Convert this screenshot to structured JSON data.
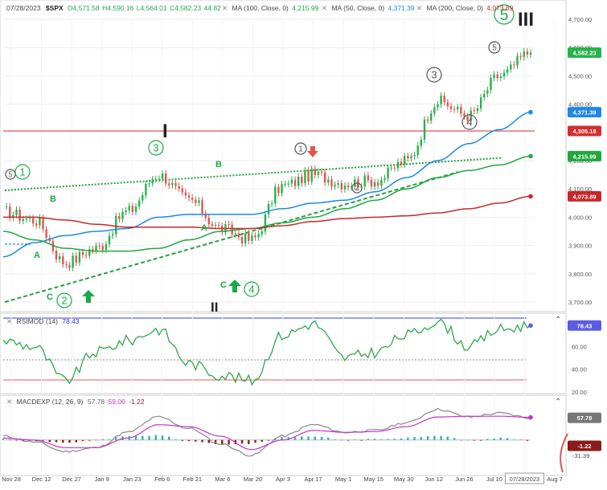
{
  "header": {
    "date": "07/28/2023",
    "symbol": "$SPX",
    "open": "O4,571.58",
    "high": "H4,590.16",
    "low": "L4,564.01",
    "close": "C4,582.23",
    "change": "44.82",
    "ma100": "MA (100, Close, 0)",
    "ma100_val": "4,215.99",
    "ma50": "MA (50, Close, 0)",
    "ma50_val": "4,371.39",
    "ma200": "MA (200, Close, 0)",
    "ma200_val": "4,073.89"
  },
  "panels": {
    "rsi": {
      "title": "RSIMOD (14)",
      "value": "78.43"
    },
    "macd": {
      "title": "MACDEXP (12, 26, 9)",
      "v1": "57.78",
      "v2": "59.00",
      "v3": "-1.22"
    }
  },
  "price_axis_ticks": [
    "4,700.00",
    "4,600.00",
    "4,500.00",
    "4,400.00",
    "4,300.00",
    "4,200.00",
    "4,100.00",
    "4,000.00",
    "3,900.00",
    "3,800.00",
    "3,700.00"
  ],
  "rsi_axis_ticks": [
    "60.00",
    "40.00",
    "20.00"
  ],
  "price_badges": {
    "close": "4,582.23",
    "ma50": "4,371.39",
    "hline": "4,305.18",
    "ma100": "4,215.99",
    "ma200": "4,073.89"
  },
  "rsi_badge": "78.43",
  "macd_badges": {
    "macd": "57.78",
    "hist": "-1.22",
    "low": "-31.39"
  },
  "x_axis_labels": [
    "Nov 28",
    "Dec 12",
    "Dec 27",
    "Jan 9",
    "Jan 23",
    "Feb 6",
    "Feb 21",
    "Mar 6",
    "Mar 20",
    "Apr 3",
    "Apr 17",
    "May 1",
    "May 15",
    "May 30",
    "Jun 12",
    "Jun 26",
    "Jul 10",
    "07/28/2023",
    "Aug 7"
  ],
  "wave_labels": {
    "w5_start": "5",
    "w1_start": "1",
    "A1": "A",
    "B1": "B",
    "C1": "C",
    "w2": "2",
    "w3_feb": "3",
    "I": "I",
    "B2": "B",
    "A2": "A",
    "C2": "C",
    "w4": "4",
    "II": "II",
    "w1_apr": "1",
    "w2_may": "2",
    "w3_jun": "3",
    "w4_jun": "4",
    "w5_jul": "5",
    "w5_big": "5",
    "III": "III"
  },
  "colors": {
    "up": "#27b24b",
    "down": "#e0564f",
    "ma50": "#1e88e5",
    "ma100": "#1fa83f",
    "ma200": "#c62828",
    "hline": "#d32f2f",
    "rsi": "#2fa84a",
    "rsi_fill": "#5c5ce0",
    "macd_line": "#888888",
    "signal": "#c832c8",
    "hist_pos": "#26b5b5",
    "hist_neg": "#8b1a1a",
    "wave_green": "#1aa84a"
  },
  "chart_data": {
    "type": "line",
    "x": [
      "Nov 28",
      "Dec 12",
      "Dec 27",
      "Jan 9",
      "Jan 23",
      "Feb 6",
      "Feb 21",
      "Mar 6",
      "Mar 20",
      "Apr 3",
      "Apr 17",
      "May 1",
      "May 15",
      "May 30",
      "Jun 12",
      "Jun 26",
      "Jul 10",
      "Jul 28"
    ],
    "series": [
      {
        "name": "$SPX",
        "values": [
          4020,
          3990,
          3840,
          3890,
          4020,
          4150,
          4060,
          3960,
          3920,
          4110,
          4150,
          4120,
          4130,
          4200,
          4410,
          4360,
          4500,
          4582.23
        ]
      },
      {
        "name": "MA (50, Close, 0)",
        "values": [
          3860,
          3910,
          3935,
          3950,
          3960,
          4000,
          4010,
          4010,
          4010,
          4030,
          4050,
          4060,
          4090,
          4140,
          4200,
          4260,
          4310,
          4371.39
        ]
      },
      {
        "name": "MA (100, Close, 0)",
        "values": [
          3950,
          3920,
          3890,
          3880,
          3880,
          3890,
          3920,
          3950,
          3960,
          3980,
          4000,
          4030,
          4060,
          4100,
          4140,
          4165,
          4185,
          4215.99
        ]
      },
      {
        "name": "MA (200, Close, 0)",
        "values": [
          4000,
          4000,
          3990,
          3975,
          3965,
          3965,
          3965,
          3960,
          3960,
          3970,
          3985,
          3995,
          4000,
          4005,
          4015,
          4030,
          4050,
          4073.89
        ]
      }
    ],
    "ylim": [
      3700,
      4700
    ],
    "rsi": {
      "name": "RSIMOD (14)",
      "values": [
        65,
        60,
        30,
        55,
        65,
        75,
        45,
        35,
        30,
        70,
        80,
        50,
        55,
        70,
        82,
        60,
        75,
        78.43
      ],
      "ylim": [
        20,
        85
      ]
    },
    "macd": {
      "name": "MACDEXP (12, 26, 9)",
      "macd": [
        10,
        -5,
        -30,
        -20,
        20,
        60,
        30,
        -10,
        -40,
        10,
        40,
        20,
        25,
        45,
        80,
        60,
        70,
        57.78
      ],
      "signal": [
        5,
        0,
        -20,
        -20,
        5,
        40,
        35,
        10,
        -25,
        0,
        25,
        20,
        22,
        35,
        60,
        62,
        62,
        59.0
      ],
      "histogram": -1.22
    }
  }
}
